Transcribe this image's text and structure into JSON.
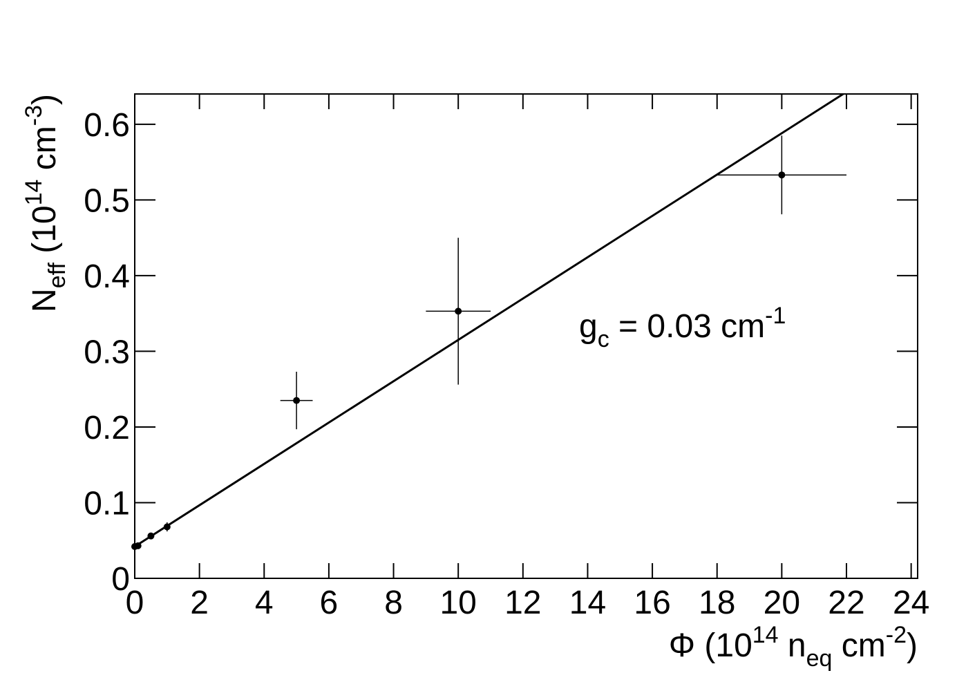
{
  "chart_data": {
    "type": "scatter",
    "x_label": [
      "Φ (10",
      "14",
      " n",
      "eq",
      " cm",
      "-2",
      ")"
    ],
    "y_label": [
      "N",
      "eff",
      " (10",
      "14",
      " cm",
      "-3",
      ")"
    ],
    "annotation": [
      "g",
      "c",
      " = 0.03 cm",
      "-1"
    ],
    "series": [
      {
        "color": "#000000",
        "x": [
          0,
          0.1,
          0.5,
          1,
          5,
          10,
          20
        ],
        "values": [
          0.042,
          0.043,
          0.056,
          0.068,
          0.235,
          0.353,
          0.533
        ],
        "x_errors": [
          0.05,
          0.05,
          0.05,
          0.05,
          0.5,
          1,
          2
        ],
        "y_errors": [
          0.003,
          0.003,
          0.004,
          0.006,
          0.038,
          0.097,
          0.052
        ]
      }
    ],
    "fit": {
      "color": "#000000",
      "x": [
        0,
        21.9
      ],
      "values": [
        0.042,
        0.64
      ]
    },
    "xlim": [
      0,
      24.2
    ],
    "ylim": [
      0,
      0.64
    ],
    "xticks": [
      0,
      2,
      4,
      6,
      8,
      10,
      12,
      14,
      16,
      18,
      20,
      22,
      24
    ],
    "yticks": [
      0,
      0.1,
      0.2,
      0.3,
      0.4,
      0.5,
      0.6
    ]
  }
}
